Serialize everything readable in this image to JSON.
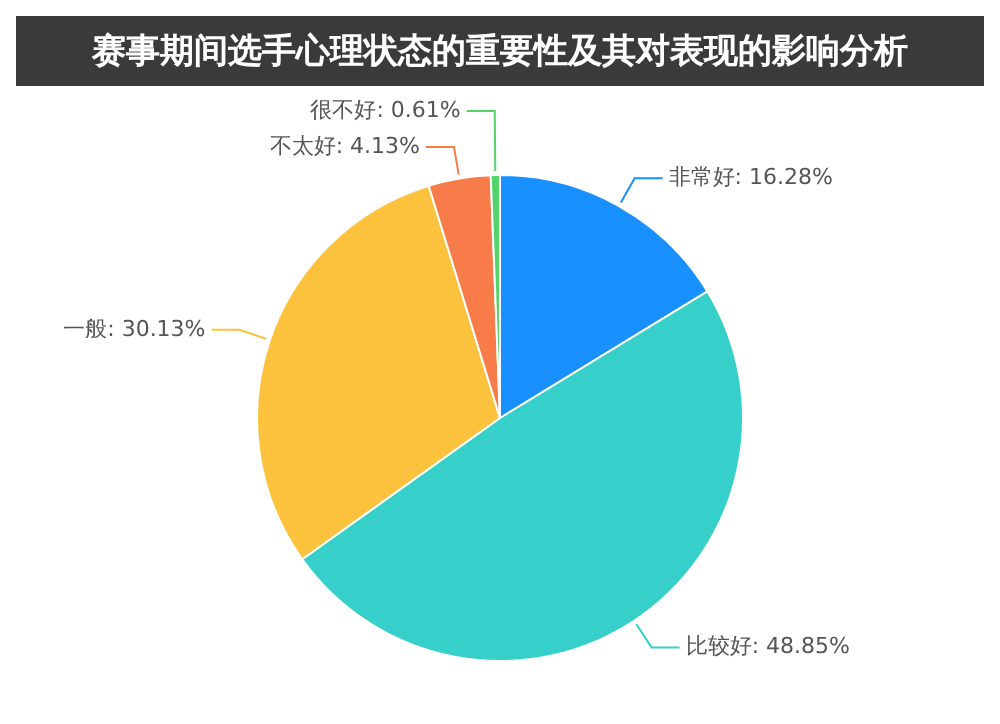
{
  "chart_data": {
    "type": "pie",
    "title": "赛事期间选手心理状态的重要性及其对表现的影响分析",
    "categories": [
      "非常好",
      "比较好",
      "一般",
      "不太好",
      "很不好"
    ],
    "values": [
      16.28,
      48.85,
      30.13,
      4.13,
      0.61
    ],
    "colors": [
      "#1890ff",
      "#36cfc9",
      "#fcc23d",
      "#f87c4a",
      "#52d46b"
    ],
    "value_labels": [
      ": 16.28%",
      ": 48.85%",
      ": 30.13%",
      ": 4.13%",
      ": 0.61%"
    ],
    "legend": false
  }
}
